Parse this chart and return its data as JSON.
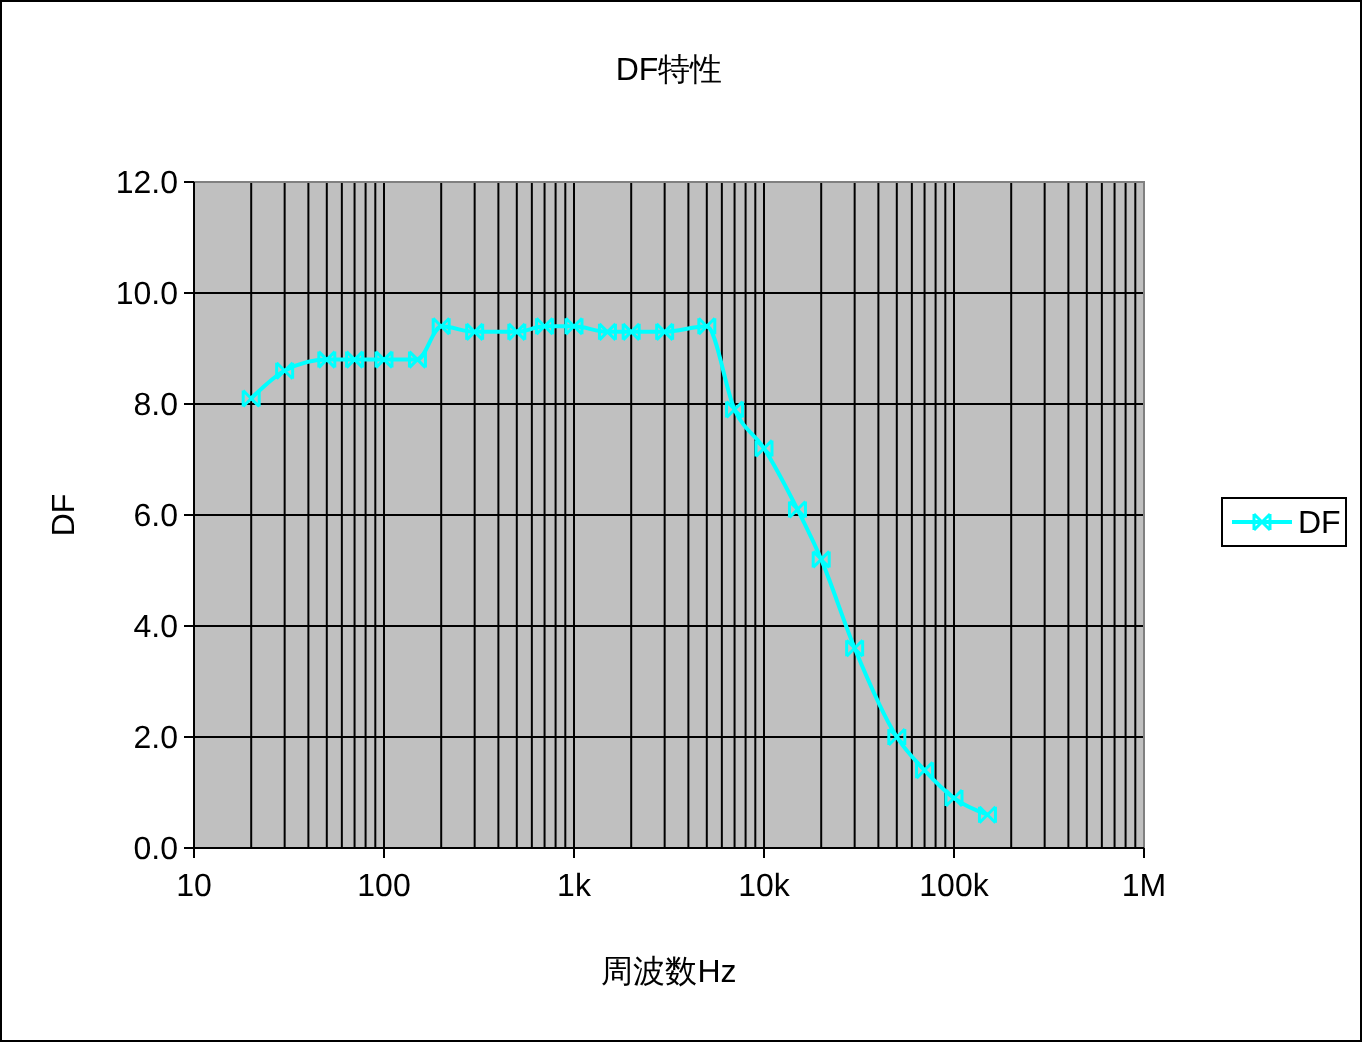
{
  "chart_data": {
    "type": "line",
    "title": "DF特性",
    "xlabel": "周波数Hz",
    "ylabel": "DF",
    "log": "x",
    "xlim": [
      10,
      1000000
    ],
    "xticks": [
      10,
      {
        "value": 20,
        "label": null
      },
      {
        "value": 30,
        "label": null
      },
      {
        "value": 40,
        "label": null
      },
      {
        "value": 50,
        "label": null
      },
      {
        "value": 60,
        "label": null
      },
      {
        "value": 70,
        "label": null
      },
      {
        "value": 80,
        "label": null
      },
      {
        "value": 90,
        "label": null
      },
      100,
      {
        "value": 200,
        "label": null
      },
      {
        "value": 300,
        "label": null
      },
      {
        "value": 400,
        "label": null
      },
      {
        "value": 500,
        "label": null
      },
      {
        "value": 600,
        "label": null
      },
      {
        "value": 700,
        "label": null
      },
      {
        "value": 800,
        "label": null
      },
      {
        "value": 900,
        "label": null
      },
      {
        "value": 1000,
        "label": "1k"
      },
      {
        "value": 2000,
        "label": null
      },
      {
        "value": 3000,
        "label": null
      },
      {
        "value": 4000,
        "label": null
      },
      {
        "value": 5000,
        "label": null
      },
      {
        "value": 6000,
        "label": null
      },
      {
        "value": 7000,
        "label": null
      },
      {
        "value": 8000,
        "label": null
      },
      {
        "value": 9000,
        "label": null
      },
      {
        "value": 10000,
        "label": "10k"
      },
      {
        "value": 20000,
        "label": null
      },
      {
        "value": 30000,
        "label": null
      },
      {
        "value": 40000,
        "label": null
      },
      {
        "value": 50000,
        "label": null
      },
      {
        "value": 60000,
        "label": null
      },
      {
        "value": 70000,
        "label": null
      },
      {
        "value": 80000,
        "label": null
      },
      {
        "value": 90000,
        "label": null
      },
      {
        "value": 100000,
        "label": "100k"
      },
      {
        "value": 200000,
        "label": null
      },
      {
        "value": 300000,
        "label": null
      },
      {
        "value": 400000,
        "label": null
      },
      {
        "value": 500000,
        "label": null
      },
      {
        "value": 600000,
        "label": null
      },
      {
        "value": 700000,
        "label": null
      },
      {
        "value": 800000,
        "label": null
      },
      {
        "value": 900000,
        "label": null
      },
      {
        "value": 1000000,
        "label": "1M"
      }
    ],
    "ylim": [
      0,
      12
    ],
    "yticks": [
      {
        "value": 0,
        "label": "0.0"
      },
      {
        "value": 2,
        "label": "2.0"
      },
      {
        "value": 4,
        "label": "4.0"
      },
      {
        "value": 6,
        "label": "6.0"
      },
      {
        "value": 8,
        "label": "8.0"
      },
      {
        "value": 10,
        "label": "10.0"
      },
      {
        "value": 12,
        "label": "12.0"
      }
    ],
    "grid": true,
    "legend": "right",
    "marker": "cross",
    "line_style": "solid",
    "x": [
      20,
      30,
      50,
      70,
      100,
      150,
      200,
      300,
      500,
      700,
      1000,
      1500,
      2000,
      3000,
      5000,
      7000,
      10000,
      15000,
      20000,
      30000,
      50000,
      70000,
      100000,
      150000
    ],
    "series": [
      {
        "name": "DF",
        "color": "#00ffff",
        "values": [
          8.1,
          8.6,
          8.8,
          8.8,
          8.8,
          8.8,
          9.4,
          9.3,
          9.3,
          9.4,
          9.4,
          9.3,
          9.3,
          9.3,
          9.4,
          7.9,
          7.2,
          6.1,
          5.2,
          3.6,
          2.0,
          1.4,
          0.9,
          0.6
        ]
      }
    ]
  }
}
